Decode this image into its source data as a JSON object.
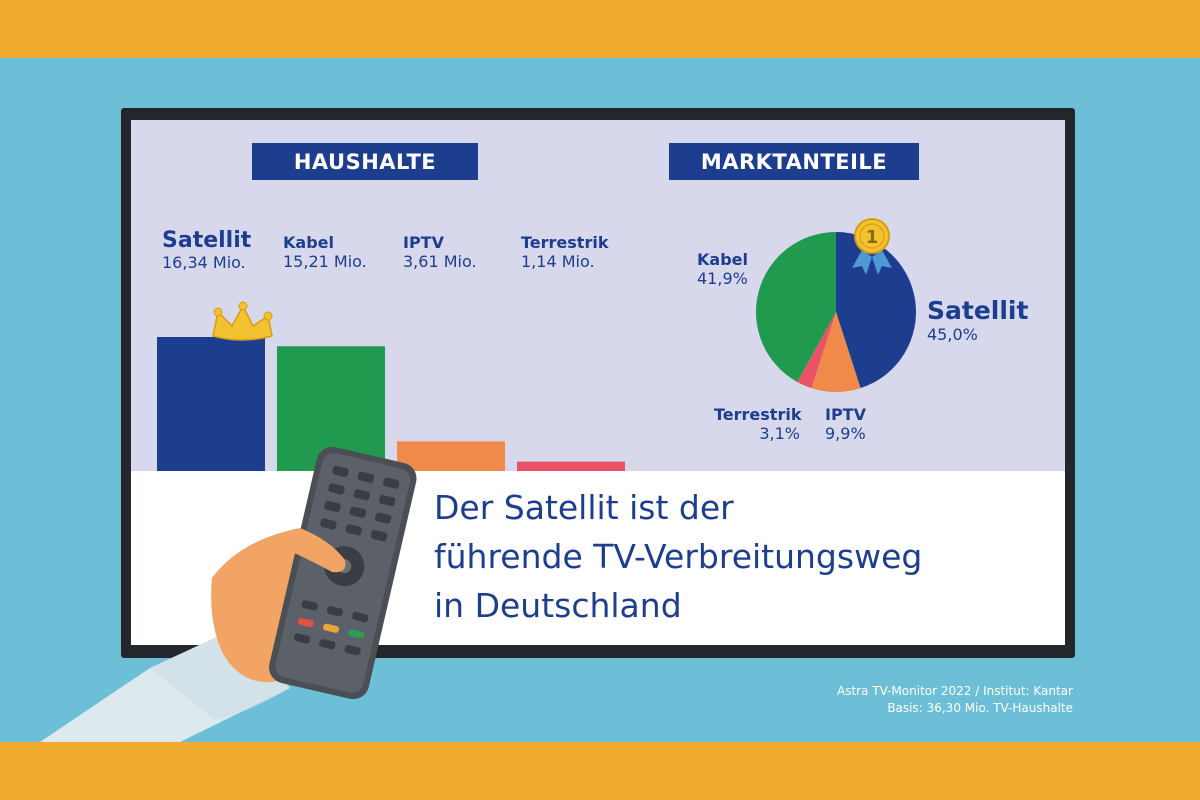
{
  "colors": {
    "satellit": "#1d3e8f",
    "kabel": "#1f9a4e",
    "iptv": "#ef8a4b",
    "terrestrik": "#ea5266"
  },
  "headers": {
    "haushalte": "HAUSHALTE",
    "marktanteile": "MARKTANTEILE"
  },
  "chart_data": [
    {
      "type": "bar",
      "title": "HAUSHALTE",
      "categories": [
        "Satellit",
        "Kabel",
        "IPTV",
        "Terrestrik"
      ],
      "values": [
        16.34,
        15.21,
        3.61,
        1.14
      ],
      "value_labels": [
        "16,34 Mio.",
        "15,21 Mio.",
        "3,61 Mio.",
        "1,14 Mio."
      ],
      "unit": "Mio.",
      "ylim": [
        0,
        16.34
      ]
    },
    {
      "type": "pie",
      "title": "MARKTANTEILE",
      "categories": [
        "Satellit",
        "IPTV",
        "Terrestrik",
        "Kabel"
      ],
      "values": [
        45.0,
        9.9,
        3.1,
        41.9
      ],
      "value_labels": [
        "45,0%",
        "9,9%",
        "3,1%",
        "41,9%"
      ]
    }
  ],
  "headline": {
    "line1": "Der Satellit ist der",
    "line2": "führende TV-Verbreitungsweg",
    "line3": "in Deutschland"
  },
  "footnote": {
    "line1": "Astra TV-Monitor 2022 / Institut: Kantar",
    "line2": "Basis: 36,30 Mio. TV-Haushalte"
  },
  "icons": {
    "crown": "crown-icon",
    "medal": "medal-icon",
    "medal_number": "1",
    "remote": "remote-control-icon",
    "hand": "hand-icon"
  }
}
